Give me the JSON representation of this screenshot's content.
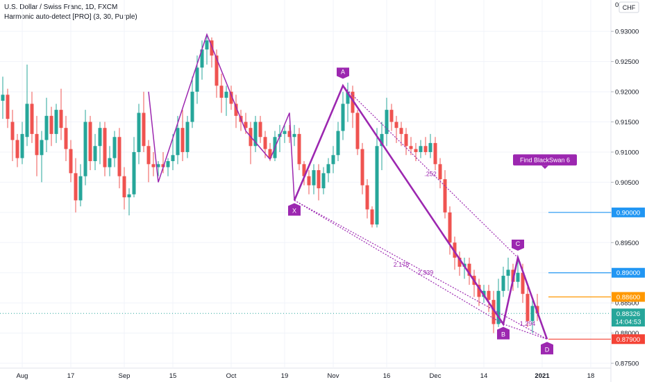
{
  "header": {
    "symbol_line": "U.S. Dollar / Swiss Franc, 1D, FXCM",
    "indicator_line": "Harmonic auto-detect [PRO] (3, 30, Purple)",
    "currency_button": "CHF"
  },
  "colors": {
    "up": "#26a69a",
    "down": "#ef5350",
    "pattern": "#9c27b0",
    "blue_line": "#2196f3",
    "orange_line": "#ff9800",
    "red_line": "#f44336",
    "grid": "#f0f3fa",
    "axis_text": "#131722"
  },
  "chart_data": {
    "type": "candlestick",
    "title": "U.S. Dollar / Swiss Franc, 1D, FXCM",
    "ylim": [
      0.8742,
      0.9352
    ],
    "x_ticks": [
      "Aug",
      "17",
      "Sep",
      "15",
      "Oct",
      "19",
      "Nov",
      "16",
      "Dec",
      "14",
      "2021",
      "18"
    ],
    "y_ticks": [
      "0.93000",
      "0.92500",
      "0.92000",
      "0.91500",
      "0.91000",
      "0.90500",
      "0.90000",
      "0.89500",
      "0.89000",
      "0.88500",
      "0.88000",
      "0.87500"
    ],
    "y_top_partial_label": "0",
    "price_labels": [
      {
        "text": "0.90000",
        "value": 0.9,
        "color": "#2196f3"
      },
      {
        "text": "0.89000",
        "value": 0.89,
        "color": "#2196f3"
      },
      {
        "text": "0.88600",
        "value": 0.886,
        "color": "#ff9800"
      },
      {
        "text": "0.88326",
        "value": 0.88326,
        "color": "#26a69a"
      },
      {
        "text": "14:04:53",
        "value": 0.8819,
        "color": "#26a69a"
      },
      {
        "text": "0.87900",
        "value": 0.879,
        "color": "#f44336"
      }
    ],
    "horizontal_levels": [
      {
        "value": 0.9,
        "color": "#2196f3"
      },
      {
        "value": 0.89,
        "color": "#2196f3"
      },
      {
        "value": 0.886,
        "color": "#ff9800"
      },
      {
        "value": 0.879,
        "color": "#f44336"
      }
    ],
    "last_price": 0.88326,
    "candles": [
      {
        "o": 0.9185,
        "h": 0.9225,
        "l": 0.9155,
        "c": 0.9195
      },
      {
        "o": 0.9195,
        "h": 0.9205,
        "l": 0.914,
        "c": 0.9155
      },
      {
        "o": 0.915,
        "h": 0.917,
        "l": 0.9085,
        "c": 0.912
      },
      {
        "o": 0.912,
        "h": 0.913,
        "l": 0.9075,
        "c": 0.909
      },
      {
        "o": 0.909,
        "h": 0.915,
        "l": 0.908,
        "c": 0.913
      },
      {
        "o": 0.9125,
        "h": 0.9245,
        "l": 0.911,
        "c": 0.918
      },
      {
        "o": 0.918,
        "h": 0.92,
        "l": 0.9115,
        "c": 0.913
      },
      {
        "o": 0.913,
        "h": 0.916,
        "l": 0.906,
        "c": 0.9095
      },
      {
        "o": 0.9095,
        "h": 0.9135,
        "l": 0.905,
        "c": 0.912
      },
      {
        "o": 0.912,
        "h": 0.919,
        "l": 0.91,
        "c": 0.916
      },
      {
        "o": 0.916,
        "h": 0.9175,
        "l": 0.911,
        "c": 0.913
      },
      {
        "o": 0.913,
        "h": 0.918,
        "l": 0.9115,
        "c": 0.917
      },
      {
        "o": 0.917,
        "h": 0.9205,
        "l": 0.912,
        "c": 0.914
      },
      {
        "o": 0.914,
        "h": 0.916,
        "l": 0.9085,
        "c": 0.9105
      },
      {
        "o": 0.9105,
        "h": 0.912,
        "l": 0.905,
        "c": 0.9065
      },
      {
        "o": 0.9065,
        "h": 0.909,
        "l": 0.9,
        "c": 0.902
      },
      {
        "o": 0.902,
        "h": 0.908,
        "l": 0.901,
        "c": 0.906
      },
      {
        "o": 0.906,
        "h": 0.917,
        "l": 0.9045,
        "c": 0.915
      },
      {
        "o": 0.915,
        "h": 0.916,
        "l": 0.907,
        "c": 0.9085
      },
      {
        "o": 0.9085,
        "h": 0.913,
        "l": 0.907,
        "c": 0.911
      },
      {
        "o": 0.911,
        "h": 0.915,
        "l": 0.908,
        "c": 0.914
      },
      {
        "o": 0.914,
        "h": 0.915,
        "l": 0.906,
        "c": 0.9075
      },
      {
        "o": 0.9075,
        "h": 0.911,
        "l": 0.906,
        "c": 0.909
      },
      {
        "o": 0.909,
        "h": 0.9135,
        "l": 0.9075,
        "c": 0.9125
      },
      {
        "o": 0.9125,
        "h": 0.914,
        "l": 0.904,
        "c": 0.906
      },
      {
        "o": 0.906,
        "h": 0.9075,
        "l": 0.9005,
        "c": 0.9025
      },
      {
        "o": 0.9025,
        "h": 0.904,
        "l": 0.8995,
        "c": 0.903
      },
      {
        "o": 0.903,
        "h": 0.9125,
        "l": 0.9025,
        "c": 0.91
      },
      {
        "o": 0.91,
        "h": 0.918,
        "l": 0.908,
        "c": 0.9165
      },
      {
        "o": 0.9165,
        "h": 0.92,
        "l": 0.91,
        "c": 0.911
      },
      {
        "o": 0.911,
        "h": 0.912,
        "l": 0.905,
        "c": 0.908
      },
      {
        "o": 0.908,
        "h": 0.91,
        "l": 0.906,
        "c": 0.9075
      },
      {
        "o": 0.9075,
        "h": 0.9085,
        "l": 0.906,
        "c": 0.908
      },
      {
        "o": 0.908,
        "h": 0.91,
        "l": 0.9065,
        "c": 0.9075
      },
      {
        "o": 0.9075,
        "h": 0.909,
        "l": 0.906,
        "c": 0.9085
      },
      {
        "o": 0.9085,
        "h": 0.913,
        "l": 0.907,
        "c": 0.9095
      },
      {
        "o": 0.9095,
        "h": 0.916,
        "l": 0.908,
        "c": 0.914
      },
      {
        "o": 0.914,
        "h": 0.917,
        "l": 0.9085,
        "c": 0.91
      },
      {
        "o": 0.91,
        "h": 0.916,
        "l": 0.909,
        "c": 0.915
      },
      {
        "o": 0.915,
        "h": 0.9225,
        "l": 0.914,
        "c": 0.92
      },
      {
        "o": 0.92,
        "h": 0.926,
        "l": 0.918,
        "c": 0.924
      },
      {
        "o": 0.924,
        "h": 0.9285,
        "l": 0.922,
        "c": 0.927
      },
      {
        "o": 0.927,
        "h": 0.9295,
        "l": 0.9245,
        "c": 0.9285
      },
      {
        "o": 0.9285,
        "h": 0.929,
        "l": 0.924,
        "c": 0.926
      },
      {
        "o": 0.926,
        "h": 0.927,
        "l": 0.919,
        "c": 0.921
      },
      {
        "o": 0.921,
        "h": 0.923,
        "l": 0.9165,
        "c": 0.919
      },
      {
        "o": 0.919,
        "h": 0.921,
        "l": 0.916,
        "c": 0.92
      },
      {
        "o": 0.92,
        "h": 0.921,
        "l": 0.917,
        "c": 0.918
      },
      {
        "o": 0.918,
        "h": 0.9195,
        "l": 0.914,
        "c": 0.916
      },
      {
        "o": 0.916,
        "h": 0.917,
        "l": 0.9135,
        "c": 0.915
      },
      {
        "o": 0.915,
        "h": 0.9165,
        "l": 0.913,
        "c": 0.914
      },
      {
        "o": 0.914,
        "h": 0.915,
        "l": 0.908,
        "c": 0.911
      },
      {
        "o": 0.911,
        "h": 0.916,
        "l": 0.91,
        "c": 0.915
      },
      {
        "o": 0.915,
        "h": 0.916,
        "l": 0.9115,
        "c": 0.9125
      },
      {
        "o": 0.9125,
        "h": 0.9135,
        "l": 0.909,
        "c": 0.9105
      },
      {
        "o": 0.9105,
        "h": 0.9115,
        "l": 0.9085,
        "c": 0.909
      },
      {
        "o": 0.909,
        "h": 0.9135,
        "l": 0.9085,
        "c": 0.9125
      },
      {
        "o": 0.9125,
        "h": 0.9145,
        "l": 0.91,
        "c": 0.913
      },
      {
        "o": 0.913,
        "h": 0.9145,
        "l": 0.9115,
        "c": 0.9135
      },
      {
        "o": 0.9135,
        "h": 0.9145,
        "l": 0.9115,
        "c": 0.9125
      },
      {
        "o": 0.9125,
        "h": 0.9145,
        "l": 0.911,
        "c": 0.913
      },
      {
        "o": 0.913,
        "h": 0.914,
        "l": 0.907,
        "c": 0.908
      },
      {
        "o": 0.908,
        "h": 0.9085,
        "l": 0.9045,
        "c": 0.906
      },
      {
        "o": 0.906,
        "h": 0.907,
        "l": 0.903,
        "c": 0.9045
      },
      {
        "o": 0.9045,
        "h": 0.908,
        "l": 0.903,
        "c": 0.907
      },
      {
        "o": 0.907,
        "h": 0.908,
        "l": 0.902,
        "c": 0.904
      },
      {
        "o": 0.904,
        "h": 0.9075,
        "l": 0.903,
        "c": 0.9065
      },
      {
        "o": 0.9065,
        "h": 0.909,
        "l": 0.905,
        "c": 0.908
      },
      {
        "o": 0.908,
        "h": 0.911,
        "l": 0.9065,
        "c": 0.9095
      },
      {
        "o": 0.9095,
        "h": 0.915,
        "l": 0.9085,
        "c": 0.9135
      },
      {
        "o": 0.9135,
        "h": 0.92,
        "l": 0.912,
        "c": 0.918
      },
      {
        "o": 0.918,
        "h": 0.9215,
        "l": 0.915,
        "c": 0.92
      },
      {
        "o": 0.92,
        "h": 0.921,
        "l": 0.914,
        "c": 0.9165
      },
      {
        "o": 0.9165,
        "h": 0.917,
        "l": 0.9095,
        "c": 0.9105
      },
      {
        "o": 0.9105,
        "h": 0.9115,
        "l": 0.903,
        "c": 0.9045
      },
      {
        "o": 0.9045,
        "h": 0.9055,
        "l": 0.899,
        "c": 0.9005
      },
      {
        "o": 0.9005,
        "h": 0.901,
        "l": 0.8975,
        "c": 0.898
      },
      {
        "o": 0.898,
        "h": 0.914,
        "l": 0.8975,
        "c": 0.911
      },
      {
        "o": 0.911,
        "h": 0.915,
        "l": 0.907,
        "c": 0.913
      },
      {
        "o": 0.913,
        "h": 0.919,
        "l": 0.911,
        "c": 0.917
      },
      {
        "o": 0.917,
        "h": 0.918,
        "l": 0.9135,
        "c": 0.915
      },
      {
        "o": 0.915,
        "h": 0.916,
        "l": 0.9115,
        "c": 0.914
      },
      {
        "o": 0.914,
        "h": 0.915,
        "l": 0.911,
        "c": 0.913
      },
      {
        "o": 0.913,
        "h": 0.914,
        "l": 0.9095,
        "c": 0.911
      },
      {
        "o": 0.911,
        "h": 0.9125,
        "l": 0.9095,
        "c": 0.9105
      },
      {
        "o": 0.9105,
        "h": 0.9115,
        "l": 0.9085,
        "c": 0.91
      },
      {
        "o": 0.91,
        "h": 0.912,
        "l": 0.909,
        "c": 0.911
      },
      {
        "o": 0.911,
        "h": 0.9125,
        "l": 0.9095,
        "c": 0.91
      },
      {
        "o": 0.91,
        "h": 0.913,
        "l": 0.909,
        "c": 0.9115
      },
      {
        "o": 0.9115,
        "h": 0.9125,
        "l": 0.907,
        "c": 0.908
      },
      {
        "o": 0.908,
        "h": 0.909,
        "l": 0.904,
        "c": 0.9055
      },
      {
        "o": 0.9055,
        "h": 0.907,
        "l": 0.899,
        "c": 0.9
      },
      {
        "o": 0.9,
        "h": 0.901,
        "l": 0.893,
        "c": 0.895
      },
      {
        "o": 0.895,
        "h": 0.896,
        "l": 0.8905,
        "c": 0.8925
      },
      {
        "o": 0.8925,
        "h": 0.8935,
        "l": 0.8895,
        "c": 0.891
      },
      {
        "o": 0.891,
        "h": 0.8925,
        "l": 0.889,
        "c": 0.8915
      },
      {
        "o": 0.8915,
        "h": 0.8925,
        "l": 0.888,
        "c": 0.8895
      },
      {
        "o": 0.8895,
        "h": 0.8905,
        "l": 0.886,
        "c": 0.888
      },
      {
        "o": 0.888,
        "h": 0.889,
        "l": 0.8845,
        "c": 0.886
      },
      {
        "o": 0.886,
        "h": 0.888,
        "l": 0.885,
        "c": 0.887
      },
      {
        "o": 0.887,
        "h": 0.888,
        "l": 0.8835,
        "c": 0.8855
      },
      {
        "o": 0.8855,
        "h": 0.887,
        "l": 0.88,
        "c": 0.8815
      },
      {
        "o": 0.8815,
        "h": 0.889,
        "l": 0.881,
        "c": 0.887
      },
      {
        "o": 0.887,
        "h": 0.891,
        "l": 0.886,
        "c": 0.8895
      },
      {
        "o": 0.8895,
        "h": 0.8925,
        "l": 0.887,
        "c": 0.8905
      },
      {
        "o": 0.8905,
        "h": 0.8915,
        "l": 0.887,
        "c": 0.8885
      },
      {
        "o": 0.8885,
        "h": 0.892,
        "l": 0.8875,
        "c": 0.89
      },
      {
        "o": 0.89,
        "h": 0.8915,
        "l": 0.885,
        "c": 0.8865
      },
      {
        "o": 0.8865,
        "h": 0.888,
        "l": 0.881,
        "c": 0.882
      },
      {
        "o": 0.882,
        "h": 0.886,
        "l": 0.88,
        "c": 0.8845
      },
      {
        "o": 0.8845,
        "h": 0.8865,
        "l": 0.882,
        "c": 0.8833
      }
    ],
    "pattern_labels": [
      {
        "text": "X",
        "ci": 60,
        "v": 0.902,
        "pos": "below"
      },
      {
        "text": "A",
        "ci": 70,
        "v": 0.921,
        "pos": "above"
      },
      {
        "text": "B",
        "ci": 103,
        "v": 0.8815,
        "pos": "below"
      },
      {
        "text": "C",
        "ci": 106,
        "v": 0.8925,
        "pos": "above"
      },
      {
        "text": "D",
        "ci": 112,
        "v": 0.879,
        "pos": "below"
      }
    ],
    "ratio_labels": [
      {
        "text": ".252",
        "ci": 88,
        "v": 0.906
      },
      {
        "text": "2.178",
        "ci": 82,
        "v": 0.891
      },
      {
        "text": "2.339",
        "ci": 87,
        "v": 0.8897
      },
      {
        "text": "1.294",
        "ci": 108,
        "v": 0.8812
      }
    ],
    "annotation": {
      "text": "Find BlackSwan 6",
      "ci": 112,
      "v": 0.9072
    }
  }
}
